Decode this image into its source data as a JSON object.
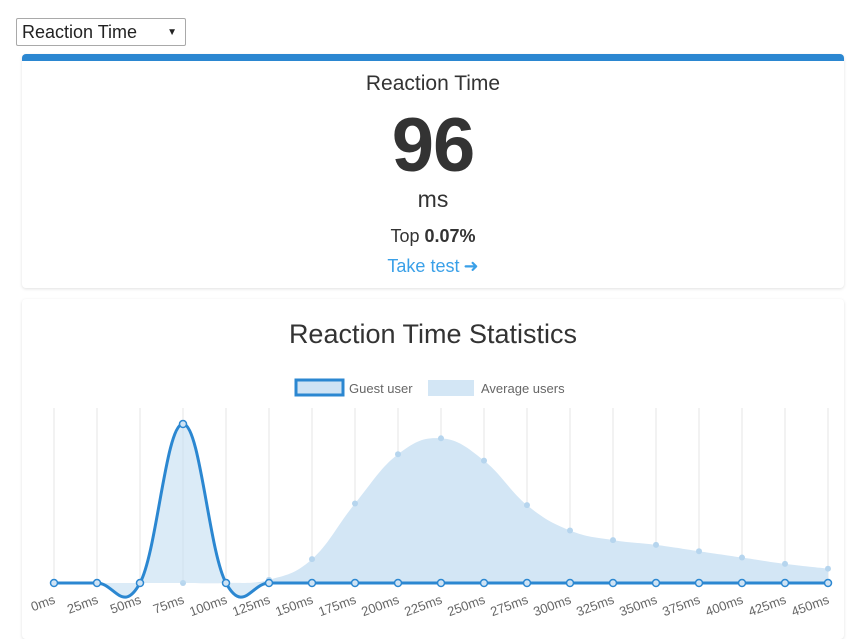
{
  "selector": {
    "selected": "Reaction Time"
  },
  "result_card": {
    "title": "Reaction Time",
    "score": "96",
    "unit": "ms",
    "rank_prefix": "Top ",
    "rank_value": "0.07%",
    "take_test_label": "Take test"
  },
  "stats_title": "Reaction Time Statistics",
  "colors": {
    "accent": "#2b87d1",
    "link": "#3aa0e8",
    "area": "#d3e6f5"
  },
  "chart_data": {
    "type": "line",
    "title": "Reaction Time Statistics",
    "categories": [
      "0ms",
      "25ms",
      "50ms",
      "75ms",
      "100ms",
      "125ms",
      "150ms",
      "175ms",
      "200ms",
      "225ms",
      "250ms",
      "275ms",
      "300ms",
      "325ms",
      "350ms",
      "375ms",
      "400ms",
      "425ms",
      "450ms"
    ],
    "ylim": [
      0,
      100
    ],
    "legend": "top",
    "grid": true,
    "series": [
      {
        "name": "Guest user",
        "style": "line",
        "values": [
          0,
          0,
          0,
          100,
          0,
          0,
          0,
          0,
          0,
          0,
          0,
          0,
          0,
          0,
          0,
          0,
          0,
          0,
          0
        ]
      },
      {
        "name": "Average users",
        "style": "area",
        "values": [
          0,
          0,
          0,
          0,
          0,
          2,
          15,
          50,
          81,
          91,
          77,
          49,
          33,
          27,
          24,
          20,
          16,
          12,
          9
        ]
      }
    ]
  }
}
